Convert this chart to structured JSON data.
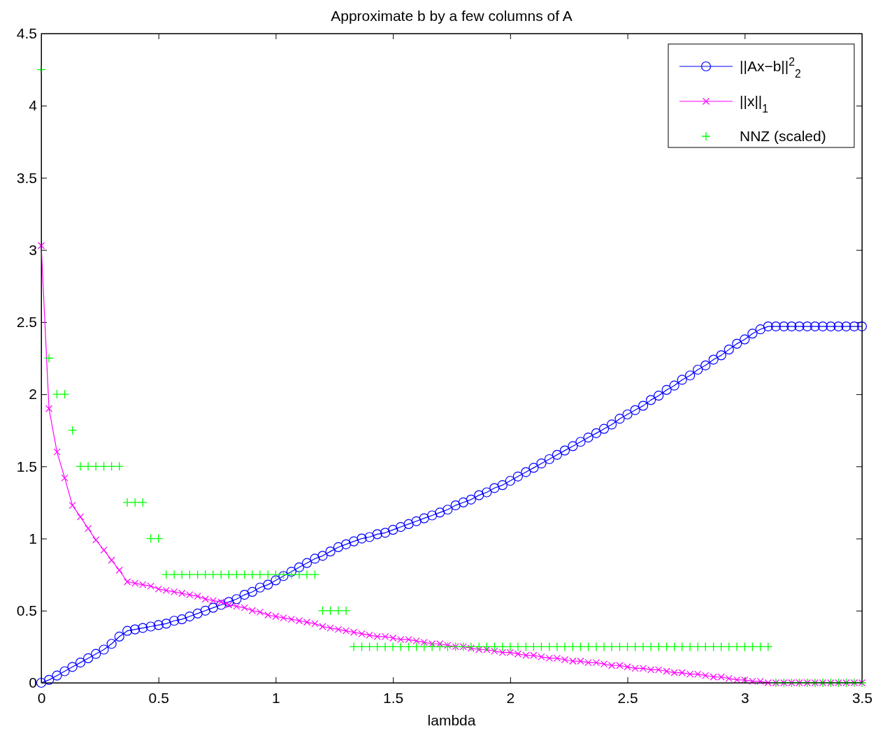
{
  "chart_data": {
    "type": "line",
    "title": "Approximate b by a few columns of A",
    "xlabel": "lambda",
    "xlim": [
      0,
      3.5
    ],
    "xticks": [
      0,
      0.5,
      1,
      1.5,
      2,
      2.5,
      3,
      3.5
    ],
    "ylim": [
      0,
      4.5
    ],
    "yticks": [
      0,
      0.5,
      1,
      1.5,
      2,
      2.5,
      3,
      3.5,
      4,
      4.5
    ],
    "x": [
      0,
      0.033,
      0.067,
      0.1,
      0.133,
      0.167,
      0.2,
      0.233,
      0.267,
      0.3,
      0.333,
      0.367,
      0.4,
      0.433,
      0.467,
      0.5,
      0.533,
      0.567,
      0.6,
      0.633,
      0.667,
      0.7,
      0.733,
      0.767,
      0.8,
      0.833,
      0.867,
      0.9,
      0.933,
      0.967,
      1,
      1.033,
      1.067,
      1.1,
      1.133,
      1.167,
      1.2,
      1.233,
      1.267,
      1.3,
      1.333,
      1.367,
      1.4,
      1.433,
      1.467,
      1.5,
      1.533,
      1.567,
      1.6,
      1.633,
      1.667,
      1.7,
      1.733,
      1.767,
      1.8,
      1.833,
      1.867,
      1.9,
      1.933,
      1.967,
      2,
      2.033,
      2.067,
      2.1,
      2.133,
      2.167,
      2.2,
      2.233,
      2.267,
      2.3,
      2.333,
      2.367,
      2.4,
      2.433,
      2.467,
      2.5,
      2.533,
      2.567,
      2.6,
      2.633,
      2.667,
      2.7,
      2.733,
      2.767,
      2.8,
      2.833,
      2.867,
      2.9,
      2.933,
      2.967,
      3,
      3.033,
      3.067,
      3.1,
      3.133,
      3.167,
      3.2,
      3.233,
      3.267,
      3.3,
      3.333,
      3.367,
      3.4,
      3.433,
      3.467,
      3.5
    ],
    "series": [
      {
        "name": "||Ax−b||$^{2}$$_{2}$",
        "color": "#0000ff",
        "marker": "circle",
        "values": [
          0,
          0.02,
          0.05,
          0.08,
          0.11,
          0.14,
          0.17,
          0.2,
          0.23,
          0.27,
          0.32,
          0.36,
          0.37,
          0.38,
          0.39,
          0.4,
          0.41,
          0.43,
          0.44,
          0.46,
          0.48,
          0.5,
          0.52,
          0.54,
          0.56,
          0.58,
          0.61,
          0.63,
          0.66,
          0.68,
          0.71,
          0.74,
          0.77,
          0.8,
          0.83,
          0.86,
          0.88,
          0.91,
          0.94,
          0.96,
          0.98,
          1,
          1.01,
          1.03,
          1.04,
          1.06,
          1.08,
          1.1,
          1.12,
          1.14,
          1.16,
          1.18,
          1.2,
          1.23,
          1.25,
          1.27,
          1.3,
          1.32,
          1.35,
          1.37,
          1.4,
          1.43,
          1.46,
          1.49,
          1.52,
          1.55,
          1.58,
          1.61,
          1.64,
          1.67,
          1.7,
          1.73,
          1.76,
          1.79,
          1.83,
          1.86,
          1.89,
          1.92,
          1.96,
          1.99,
          2.03,
          2.06,
          2.1,
          2.13,
          2.17,
          2.2,
          2.24,
          2.27,
          2.31,
          2.35,
          2.38,
          2.42,
          2.45,
          2.47,
          2.47,
          2.47,
          2.47,
          2.47,
          2.47,
          2.47,
          2.47,
          2.47,
          2.47,
          2.47,
          2.47,
          2.47
        ]
      },
      {
        "name": "||x||$_{1}$",
        "color": "#ff00ff",
        "marker": "cross",
        "values": [
          3.03,
          1.9,
          1.6,
          1.42,
          1.23,
          1.15,
          1.07,
          0.99,
          0.92,
          0.85,
          0.78,
          0.7,
          0.69,
          0.68,
          0.67,
          0.65,
          0.64,
          0.63,
          0.62,
          0.61,
          0.6,
          0.58,
          0.57,
          0.56,
          0.54,
          0.53,
          0.52,
          0.5,
          0.49,
          0.47,
          0.46,
          0.45,
          0.44,
          0.43,
          0.42,
          0.41,
          0.39,
          0.38,
          0.37,
          0.36,
          0.35,
          0.34,
          0.33,
          0.32,
          0.32,
          0.31,
          0.3,
          0.3,
          0.29,
          0.28,
          0.27,
          0.27,
          0.26,
          0.25,
          0.25,
          0.24,
          0.23,
          0.23,
          0.22,
          0.21,
          0.21,
          0.2,
          0.19,
          0.19,
          0.18,
          0.17,
          0.17,
          0.16,
          0.15,
          0.15,
          0.14,
          0.14,
          0.13,
          0.12,
          0.12,
          0.11,
          0.1,
          0.1,
          0.09,
          0.09,
          0.08,
          0.07,
          0.07,
          0.06,
          0.06,
          0.05,
          0.04,
          0.04,
          0.03,
          0.02,
          0.02,
          0.01,
          0.01,
          0,
          0,
          0,
          0,
          0,
          0,
          0,
          0,
          0,
          0,
          0,
          0,
          0
        ]
      },
      {
        "name": "NNZ (scaled)",
        "type": "scatter",
        "color": "#00ff00",
        "marker": "cross",
        "values": [
          4.25,
          2.25,
          2,
          2,
          1.75,
          1.5,
          1.5,
          1.5,
          1.5,
          1.5,
          1.5,
          1.25,
          1.25,
          1.25,
          1,
          1,
          0.75,
          0.75,
          0.75,
          0.75,
          0.75,
          0.75,
          0.75,
          0.75,
          0.75,
          0.75,
          0.75,
          0.75,
          0.75,
          0.75,
          0.75,
          0.75,
          0.75,
          0.75,
          0.75,
          0.75,
          0.5,
          0.5,
          0.5,
          0.5,
          0.25,
          0.25,
          0.25,
          0.25,
          0.25,
          0.25,
          0.25,
          0.25,
          0.25,
          0.25,
          0.25,
          0.25,
          0.25,
          0.25,
          0.25,
          0.25,
          0.25,
          0.25,
          0.25,
          0.25,
          0.25,
          0.25,
          0.25,
          0.25,
          0.25,
          0.25,
          0.25,
          0.25,
          0.25,
          0.25,
          0.25,
          0.25,
          0.25,
          0.25,
          0.25,
          0.25,
          0.25,
          0.25,
          0.25,
          0.25,
          0.25,
          0.25,
          0.25,
          0.25,
          0.25,
          0.25,
          0.25,
          0.25,
          0.25,
          0.25,
          0.25,
          0.25,
          0.25,
          0.25,
          0,
          0,
          0,
          0,
          0,
          0,
          0,
          0,
          0,
          0,
          0,
          0
        ]
      }
    ],
    "legend": "top right",
    "grid": false
  }
}
